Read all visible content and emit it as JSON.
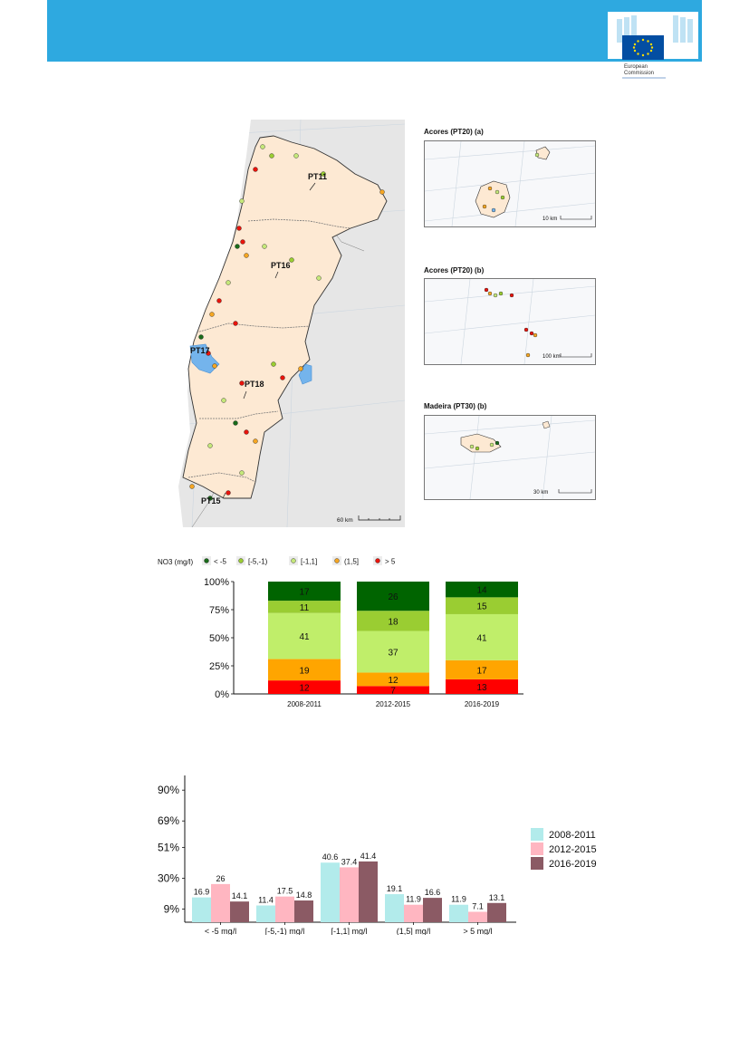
{
  "logo": {
    "line1": "European",
    "line2": "Commission"
  },
  "maps": {
    "main_labels": [
      "PT11",
      "PT16",
      "PT17",
      "PT18",
      "PT15"
    ],
    "main_scale": "60 km",
    "inset1": {
      "title": "Acores (PT20) (a)",
      "scale": "10 km"
    },
    "inset2": {
      "title": "Acores (PT20) (b)",
      "scale": "100 km"
    },
    "inset3": {
      "title": "Madeira (PT30) (b)",
      "scale": "30 km"
    }
  },
  "legend": {
    "title": "NO3 (mg/l)",
    "items": [
      {
        "label": "< -5",
        "color": "#1a6b1a"
      },
      {
        "label": "[-5,-1)",
        "color": "#9acd32"
      },
      {
        "label": "[-1,1]",
        "color": "#c5e87a"
      },
      {
        "label": "(1,5]",
        "color": "#f5a623"
      },
      {
        "label": "> 5",
        "color": "#e8140c"
      }
    ]
  },
  "chart_data": [
    {
      "type": "bar",
      "subtype": "stacked-percent",
      "categories": [
        "2008-2011",
        "2012-2015",
        "2016-2019"
      ],
      "series": [
        {
          "name": "> 5",
          "color": "#ff0000",
          "values": [
            12,
            7,
            13
          ]
        },
        {
          "name": "(1,5]",
          "color": "#ffa500",
          "values": [
            19,
            12,
            17
          ]
        },
        {
          "name": "[-1,1]",
          "color": "#c0ee6a",
          "values": [
            41,
            37,
            41
          ]
        },
        {
          "name": "[-5,-1)",
          "color": "#9acd32",
          "values": [
            11,
            18,
            15
          ]
        },
        {
          "name": "< -5",
          "color": "#006400",
          "values": [
            17,
            26,
            14
          ]
        }
      ],
      "yticks": [
        "0%",
        "25%",
        "50%",
        "75%",
        "100%"
      ],
      "ylim": [
        0,
        100
      ]
    },
    {
      "type": "bar",
      "subtype": "grouped",
      "categories": [
        "< -5 mg/l",
        "[-5,-1) mg/l",
        "[-1,1] mg/l",
        "(1,5] mg/l",
        "> 5 mg/l"
      ],
      "series": [
        {
          "name": "2008-2011",
          "color": "#b2ebeb",
          "values": [
            16.9,
            11.4,
            40.6,
            19.1,
            11.9
          ]
        },
        {
          "name": "2012-2015",
          "color": "#ffb6c1",
          "values": [
            26,
            17.5,
            37.4,
            11.9,
            7.1
          ]
        },
        {
          "name": "2016-2019",
          "color": "#8b5a64",
          "values": [
            14.1,
            14.8,
            41.4,
            16.6,
            13.1
          ]
        }
      ],
      "yticks": [
        "9%",
        "30%",
        "51%",
        "69%",
        "90%"
      ],
      "ytick_values": [
        9,
        30,
        51,
        69,
        90
      ],
      "ylim": [
        0,
        100
      ],
      "legend_position": "right"
    }
  ]
}
